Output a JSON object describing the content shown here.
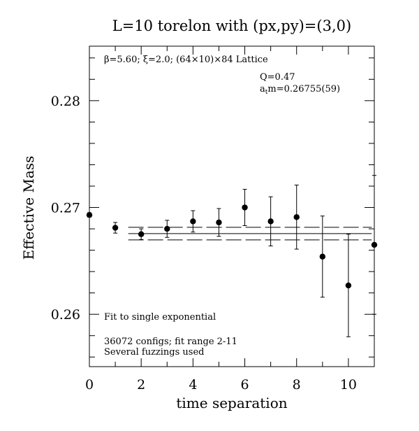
{
  "chart_data": {
    "type": "scatter",
    "title": "L=10 torelon with (px,py)=(3,0)",
    "xlabel": "time separation",
    "ylabel": "Effective Mass",
    "xlim": [
      0,
      11
    ],
    "ylim": [
      0.2551,
      0.2851
    ],
    "x_ticks": [
      "0",
      "2",
      "4",
      "6",
      "8",
      "10"
    ],
    "y_ticks": [
      "0.26",
      "0.27",
      "0.28"
    ],
    "annotations": {
      "lattice": "β=5.60; ξ=2.0; (64×10)×84 Lattice",
      "q_value": "Q=0.47",
      "fit_mass": "atm=0.26755(59)",
      "fit_type": "Fit to single exponential",
      "configs": "36072 configs; fit range 2-11",
      "fuzzings": "Several fuzzings used"
    },
    "fit": {
      "x_range": [
        1.5,
        10.9
      ],
      "value": 0.26755,
      "error": 0.00059
    },
    "series": [
      {
        "x": [
          0,
          1,
          2,
          3,
          4,
          5,
          6,
          7,
          8,
          9,
          10,
          11
        ],
        "values": [
          0.2693,
          0.2681,
          0.2675,
          0.268,
          0.2687,
          0.2686,
          0.27,
          0.2687,
          0.2691,
          0.2654,
          0.2627,
          0.2665
        ],
        "errors": [
          0.0002,
          0.0005,
          0.0005,
          0.0008,
          0.001,
          0.0013,
          0.0017,
          0.0023,
          0.003,
          0.0038,
          0.0048,
          0.0065
        ]
      }
    ]
  }
}
